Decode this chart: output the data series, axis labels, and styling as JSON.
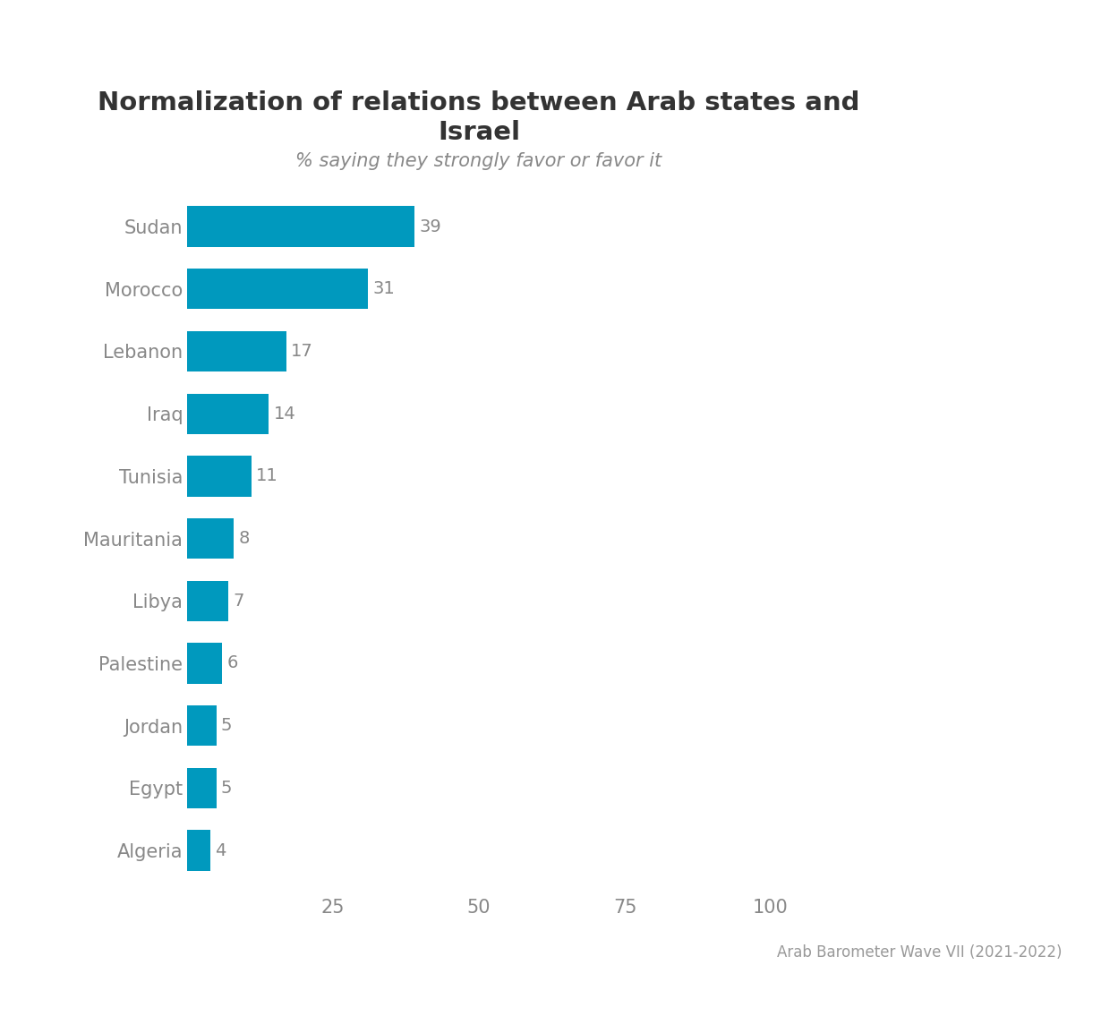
{
  "title_line1": "Normalization of relations between Arab states and",
  "title_line2": "Israel",
  "subtitle": "% saying they strongly favor or favor it",
  "source": "Arab Barometer Wave VII (2021-2022)",
  "categories": [
    "Sudan",
    "Morocco",
    "Lebanon",
    "Iraq",
    "Tunisia",
    "Mauritania",
    "Libya",
    "Palestine",
    "Jordan",
    "Egypt",
    "Algeria"
  ],
  "values": [
    39,
    31,
    17,
    14,
    11,
    8,
    7,
    6,
    5,
    5,
    4
  ],
  "bar_color": "#0099be",
  "label_color": "#888888",
  "title_color": "#333333",
  "subtitle_color": "#888888",
  "source_color": "#999999",
  "background_color": "#ffffff",
  "xlim": [
    0,
    100
  ],
  "xticks": [
    25,
    50,
    75,
    100
  ],
  "title_fontsize": 21,
  "subtitle_fontsize": 15,
  "tick_label_fontsize": 15,
  "value_label_fontsize": 14,
  "source_fontsize": 12,
  "bar_height": 0.65
}
